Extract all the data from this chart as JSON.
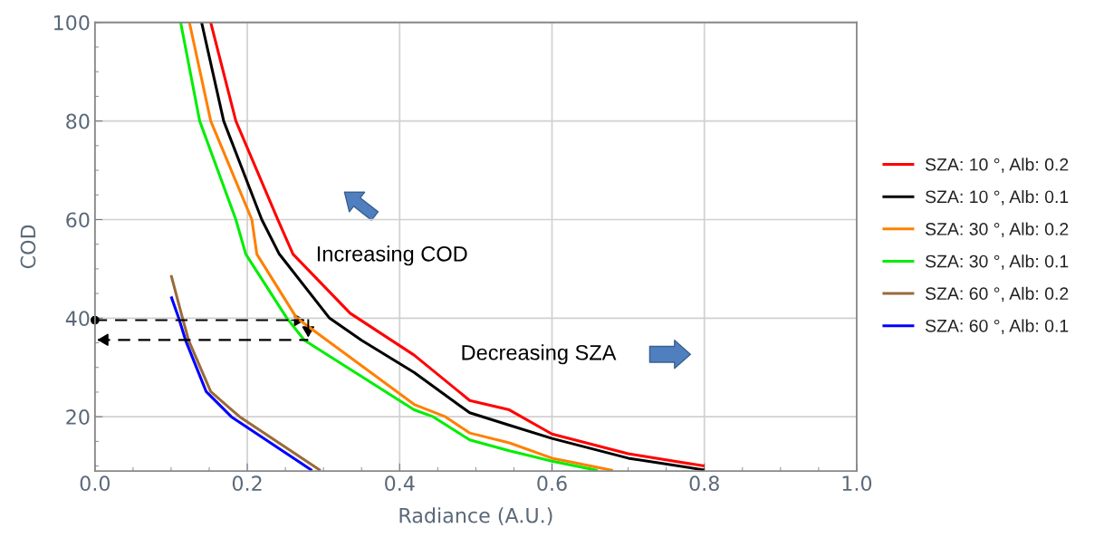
{
  "chart_data": {
    "type": "line",
    "xlabel": "Radiance (A.U.)",
    "ylabel": "COD",
    "xlim": [
      0.0,
      1.0
    ],
    "ylim": [
      9,
      100
    ],
    "xticks": [
      {
        "value": 0,
        "label": "0.0"
      },
      0.2,
      0.4,
      0.6,
      0.8,
      {
        "value": 1,
        "label": "1.0"
      }
    ],
    "yticks": [
      20,
      40,
      60,
      80,
      100
    ],
    "grid": true,
    "legend": "right",
    "marker": "none",
    "line_style": "solid",
    "annotations": [
      "Increasing COD",
      "Decreasing SZA"
    ],
    "series": [
      {
        "name": "SZA: 10 °, Alb: 0.2",
        "color": "#ff0000",
        "x": [
          0.152,
          0.185,
          0.24,
          0.26,
          0.335,
          0.419,
          0.492,
          0.544,
          0.6,
          0.7,
          0.8
        ],
        "values": [
          100,
          80,
          60,
          53,
          41,
          32.5,
          23.3,
          21.4,
          16.5,
          12.5,
          10
        ]
      },
      {
        "name": "SZA: 10 °, Alb: 0.1",
        "color": "#000000",
        "x": [
          0.14,
          0.169,
          0.219,
          0.242,
          0.308,
          0.35,
          0.419,
          0.492,
          0.544,
          0.6,
          0.7,
          0.8
        ],
        "values": [
          100,
          80,
          60,
          53,
          40,
          35.5,
          29,
          20.8,
          18.3,
          15.6,
          11.6,
          9.2
        ]
      },
      {
        "name": "SZA: 30 °, Alb: 0.2",
        "color": "#ff8000",
        "x": [
          0.124,
          0.152,
          0.206,
          0.2125,
          0.265,
          0.419,
          0.46,
          0.492,
          0.544,
          0.6,
          0.68
        ],
        "values": [
          100,
          80,
          60,
          53,
          40,
          22.5,
          20,
          16.7,
          14.7,
          11.6,
          9.1
        ]
      },
      {
        "name": "SZA: 30 °, Alb: 0.1",
        "color": "#00ee00",
        "x": [
          0.1125,
          0.1375,
          0.185,
          0.198,
          0.252,
          0.275,
          0.419,
          0.444,
          0.492,
          0.544,
          0.6,
          0.66
        ],
        "values": [
          100,
          80,
          60,
          53,
          40,
          35.5,
          21.4,
          20,
          15.3,
          13.1,
          11,
          9.1
        ]
      },
      {
        "name": "SZA: 60 °, Alb: 0.2",
        "color": "#9a6a3a",
        "x": [
          0.1,
          0.115,
          0.123,
          0.152,
          0.19,
          0.296
        ],
        "values": [
          48.7,
          40,
          35.5,
          25.1,
          20,
          9.1
        ]
      },
      {
        "name": "SZA: 60 °, Alb: 0.1",
        "color": "#0000ff",
        "x": [
          0.1,
          0.11,
          0.119,
          0.146,
          0.179,
          0.285
        ],
        "values": [
          44.4,
          40,
          35.5,
          25.1,
          20,
          9.1
        ]
      }
    ]
  }
}
